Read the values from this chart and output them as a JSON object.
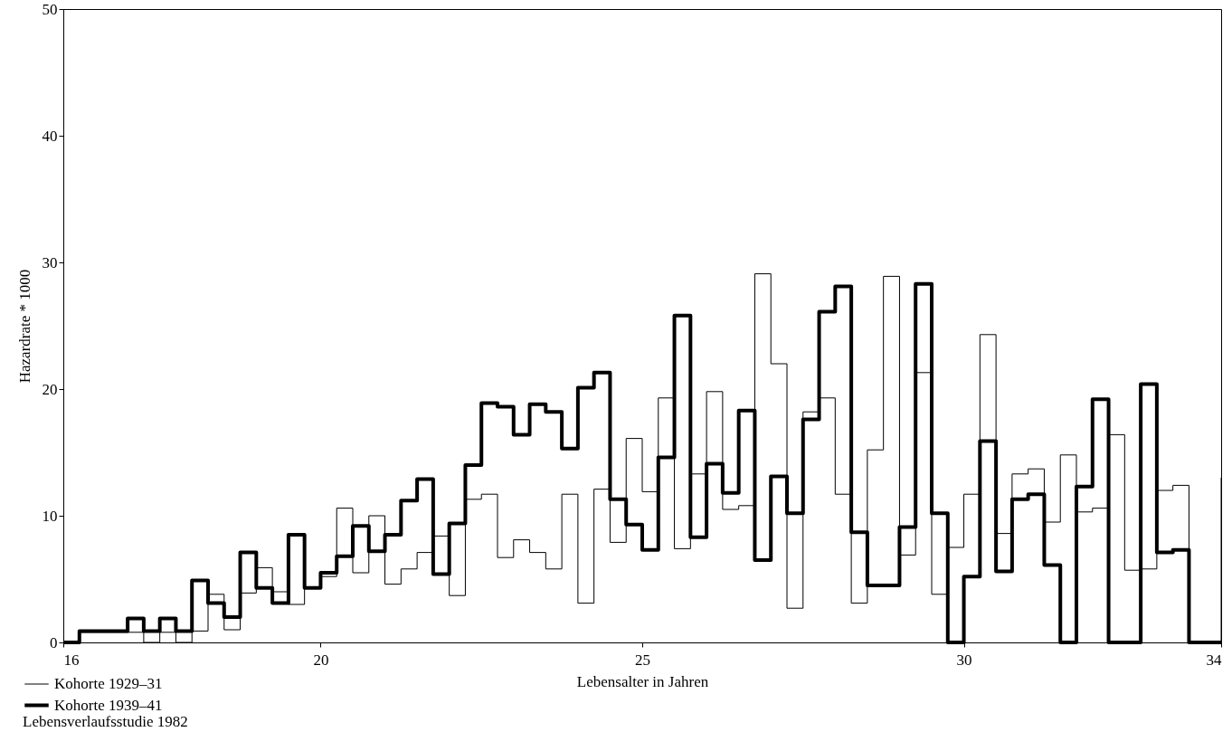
{
  "chart_data": {
    "type": "step",
    "xlabel": "Lebensalter in Jahren",
    "ylabel": "Hazardrate * 1000",
    "x": [
      16,
      16.25,
      16.5,
      16.75,
      17,
      17.25,
      17.5,
      17.75,
      18,
      18.25,
      18.5,
      18.75,
      19,
      19.25,
      19.5,
      19.75,
      20,
      20.25,
      20.5,
      20.75,
      21,
      21.25,
      21.5,
      21.75,
      22,
      22.25,
      22.5,
      22.75,
      23,
      23.25,
      23.5,
      23.75,
      24,
      24.25,
      24.5,
      24.75,
      25,
      25.25,
      25.5,
      25.75,
      26,
      26.25,
      26.5,
      26.75,
      27,
      27.25,
      27.5,
      27.75,
      28,
      28.25,
      28.5,
      28.75,
      29,
      29.25,
      29.5,
      29.75,
      30,
      30.25,
      30.5,
      30.75,
      31,
      31.25,
      31.5,
      31.75,
      32,
      32.25,
      32.5,
      32.75,
      33,
      33.25,
      33.5,
      33.75,
      34
    ],
    "series": [
      {
        "name": "Kohorte 1929–31",
        "color": "#000000",
        "values": [
          0,
          0.8,
          0.8,
          0.8,
          0.8,
          0,
          0.8,
          0,
          0.9,
          3.8,
          1.0,
          3.9,
          5.9,
          4.0,
          3.0,
          4.3,
          5.2,
          10.6,
          5.5,
          10.0,
          4.6,
          5.8,
          7.1,
          8.4,
          3.7,
          11.3,
          11.7,
          6.7,
          8.1,
          7.1,
          5.8,
          11.7,
          3.1,
          12.1,
          7.9,
          16.1,
          11.9,
          19.3,
          7.4,
          13.3,
          19.8,
          10.5,
          10.8,
          29.1,
          22.0,
          2.7,
          18.2,
          19.3,
          11.7,
          3.1,
          15.2,
          28.9,
          6.9,
          21.3,
          3.8,
          7.5,
          11.7,
          24.3,
          8.6,
          13.3,
          13.7,
          9.5,
          14.8,
          10.3,
          10.6,
          16.4,
          5.7,
          5.8,
          12.0,
          12.4,
          0,
          0,
          13.0
        ]
      },
      {
        "name": "Kohorte 1939–41",
        "color": "#000000",
        "values": [
          0,
          0.9,
          0.9,
          0.9,
          1.9,
          0.9,
          1.9,
          0.9,
          4.9,
          3.1,
          2.0,
          7.1,
          4.3,
          3.1,
          8.5,
          4.3,
          5.5,
          6.8,
          9.2,
          7.2,
          8.5,
          11.2,
          12.9,
          5.4,
          9.4,
          14.0,
          18.9,
          18.6,
          16.4,
          18.8,
          18.2,
          15.3,
          20.1,
          21.3,
          11.3,
          9.3,
          7.3,
          14.6,
          25.8,
          8.3,
          14.1,
          11.8,
          18.3,
          6.5,
          13.1,
          10.2,
          17.6,
          26.1,
          28.1,
          8.7,
          4.5,
          4.5,
          9.1,
          28.3,
          10.2,
          0,
          5.2,
          15.9,
          5.6,
          11.3,
          11.7,
          6.1,
          0,
          12.3,
          19.2,
          0,
          0,
          20.4,
          7.1,
          7.3,
          0,
          0,
          0
        ]
      }
    ],
    "xlim": [
      16,
      34
    ],
    "xticks": [
      16,
      20,
      25,
      30,
      34
    ],
    "ylim": [
      0,
      50
    ],
    "yticks": [
      0,
      10,
      20,
      30,
      40,
      50
    ],
    "grid": false,
    "legend": "bottom left",
    "marker": "none",
    "annotations": [
      "Lebensverlaufsstudie 1982"
    ]
  }
}
